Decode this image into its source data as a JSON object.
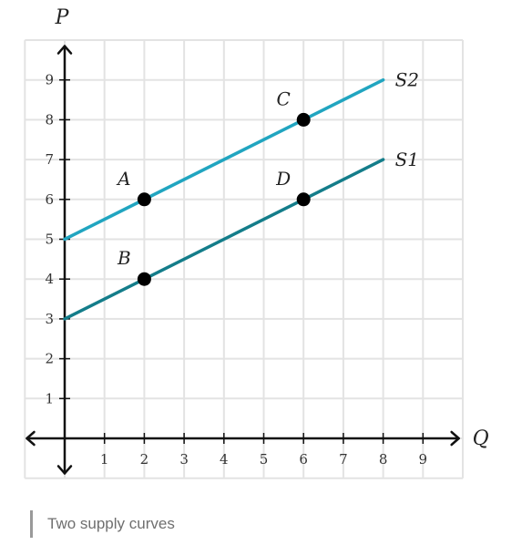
{
  "chart_data": {
    "type": "line",
    "xlabel": "Q",
    "ylabel": "P",
    "xlim": [
      0,
      9
    ],
    "ylim": [
      0,
      9
    ],
    "xticks": [
      1,
      2,
      3,
      4,
      5,
      6,
      7,
      8,
      9
    ],
    "yticks": [
      1,
      2,
      3,
      4,
      5,
      6,
      7,
      8,
      9
    ],
    "grid": true,
    "series": [
      {
        "name": "S2",
        "x": [
          0,
          8
        ],
        "y": [
          5,
          9
        ],
        "color": "#21a5c0"
      },
      {
        "name": "S1",
        "x": [
          0,
          8
        ],
        "y": [
          3,
          7
        ],
        "color": "#147d8a"
      }
    ],
    "points": [
      {
        "label": "A",
        "x": 2,
        "y": 6
      },
      {
        "label": "B",
        "x": 2,
        "y": 4
      },
      {
        "label": "C",
        "x": 6,
        "y": 8
      },
      {
        "label": "D",
        "x": 6,
        "y": 6
      }
    ]
  },
  "caption": "Two supply curves"
}
